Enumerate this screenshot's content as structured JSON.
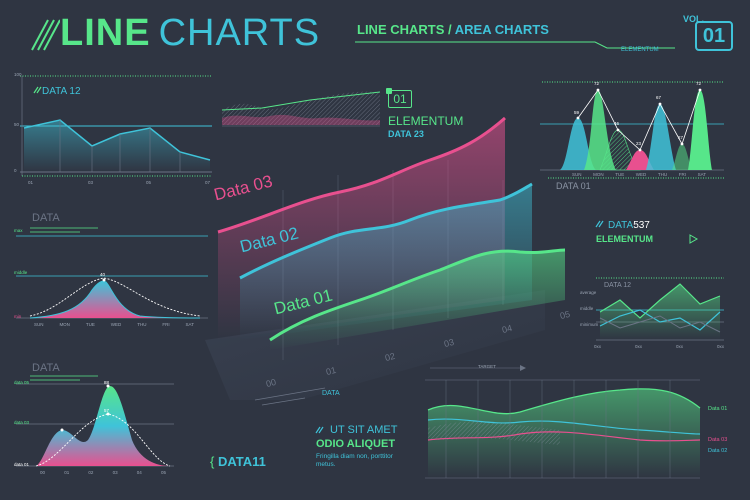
{
  "header": {
    "title_part1": "LINE",
    "title_part2": "CHARTS",
    "subtitle_part1": "LINE CHARTS /",
    "subtitle_part2": "AREA CHARTS",
    "vol_label": "VOL.",
    "vol_number": "01",
    "brand": "ELEMENTUM"
  },
  "top_center": {
    "badge": "01",
    "brand": "ELEMENTUM",
    "data_label": "DATA 23"
  },
  "main_chart": {
    "series_labels": [
      "Data 03",
      "Data 02",
      "Data 01"
    ],
    "axis_ticks": [
      "00",
      "01",
      "02",
      "03",
      "04",
      "05"
    ],
    "caption": "DATA"
  },
  "chart_top_left": {
    "label": "DATA 12",
    "y_top": "100",
    "y_mid": "50",
    "y_bottom": "0",
    "x_ticks": [
      "01",
      "03",
      "05",
      "07"
    ]
  },
  "chart_mid_left": {
    "label": "DATA",
    "y_ticks": [
      "max",
      "middle",
      "min"
    ],
    "peak": "40",
    "x_ticks": [
      "SUN",
      "MON",
      "TUE",
      "WED",
      "THU",
      "FRI",
      "SAT"
    ]
  },
  "chart_bottom_left": {
    "label": "DATA",
    "y_ticks": [
      "data 05",
      "data 03",
      "data 01"
    ],
    "peak_a": "88",
    "peak_b": "57",
    "x_ticks": [
      "00",
      "01",
      "02",
      "03",
      "04",
      "05"
    ]
  },
  "chart_top_right": {
    "caption": "DATA 01",
    "values": [
      "59",
      "72",
      "46",
      "23",
      "67",
      "27",
      "72"
    ],
    "x_ticks": [
      "SUN",
      "MON",
      "TUE",
      "WED",
      "THU",
      "FRI",
      "SAT"
    ]
  },
  "mid_right": {
    "label_prefix": "DATA",
    "label_number": "537",
    "brand": "ELEMENTUM"
  },
  "chart_mid_right": {
    "label": "DATA 12",
    "y_ticks": [
      "average",
      "middle",
      "minimum"
    ],
    "x_ticks": [
      "0xx",
      "0xx",
      "0xx",
      "0xx"
    ]
  },
  "bottom_center_text": {
    "line1": "UT SIT AMET",
    "line2": "ODIO ALIQUET",
    "body": "Fringilla diam non, porttitor metus.",
    "data11": "DATA11"
  },
  "chart_bottom_right": {
    "label": "TARGET",
    "legend": [
      "Data 01",
      "Data 03",
      "Data 02"
    ]
  },
  "chart_data": [
    {
      "type": "line",
      "name": "main_3d",
      "series": [
        {
          "name": "Data 01",
          "values": [
            0.15,
            0.2,
            0.25,
            0.35,
            0.55,
            0.6
          ]
        },
        {
          "name": "Data 02",
          "values": [
            0.3,
            0.45,
            0.5,
            0.65,
            0.8,
            0.95
          ]
        },
        {
          "name": "Data 03",
          "values": [
            0.55,
            0.7,
            0.85,
            0.9,
            1.1,
            1.4
          ]
        }
      ],
      "categories": [
        "00",
        "01",
        "02",
        "03",
        "04",
        "05"
      ]
    },
    {
      "type": "area",
      "name": "top_right",
      "categories": [
        "SUN",
        "MON",
        "TUE",
        "WED",
        "THU",
        "FRI",
        "SAT"
      ],
      "values": [
        59,
        72,
        46,
        23,
        67,
        27,
        72
      ]
    }
  ],
  "colors": {
    "bg": "#2f3542",
    "green": "#57e68a",
    "cyan": "#3fc3d9",
    "pink": "#e8508f",
    "grid": "#6b7485"
  }
}
